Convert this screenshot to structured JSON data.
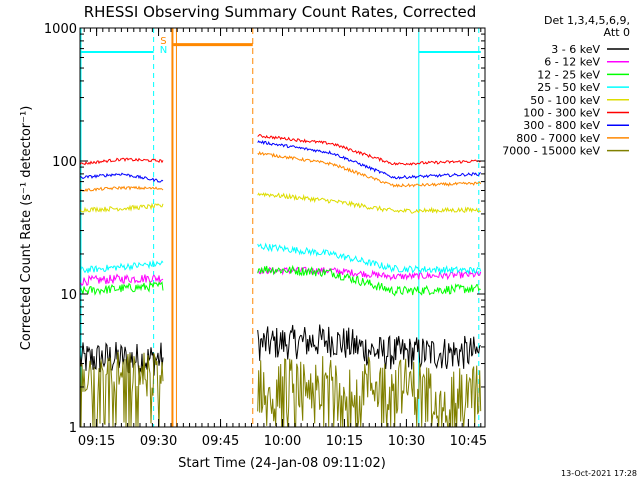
{
  "chart_data": {
    "type": "line",
    "title": "RHESSI Observing Summary Count Rates, Corrected",
    "xlabel": "Start Time (24-Jan-08 09:11:02)",
    "ylabel": "Corrected Count Rate (s⁻¹ detector⁻¹)",
    "y_scale": "log",
    "ylim": [
      1,
      1000
    ],
    "yticks": [
      {
        "value": 1,
        "label": "1"
      },
      {
        "value": 10,
        "label": "10"
      },
      {
        "value": 100,
        "label": "100"
      },
      {
        "value": 1000,
        "label": "1000"
      }
    ],
    "xlim_minutes": [
      9.183,
      10.817
    ],
    "xticks": [
      {
        "value": 9.25,
        "label": "09:15"
      },
      {
        "value": 9.5,
        "label": "09:30"
      },
      {
        "value": 9.75,
        "label": "09:45"
      },
      {
        "value": 10.0,
        "label": "10:00"
      },
      {
        "value": 10.25,
        "label": "10:15"
      },
      {
        "value": 10.5,
        "label": "10:30"
      },
      {
        "value": 10.75,
        "label": "10:45"
      }
    ],
    "legend": {
      "placement": "right",
      "header": [
        "Det 1,3,4,5,6,9,",
        "Att 0"
      ]
    },
    "series": [
      {
        "name": "3 - 6 keV",
        "color": "#000000",
        "segments": [
          {
            "x": [
              9.183,
              9.3,
              9.45,
              9.52
            ],
            "y": [
              3.2,
              3.3,
              3.2,
              3.3
            ],
            "noise": 0.3
          },
          {
            "x": [
              9.9,
              10.2,
              10.4,
              10.8
            ],
            "y": [
              4.2,
              4.5,
              3.6,
              3.6
            ],
            "noise": 0.3
          }
        ]
      },
      {
        "name": "6 - 12 keV",
        "color": "#ff00ff",
        "segments": [
          {
            "x": [
              9.183,
              9.35,
              9.52
            ],
            "y": [
              12.5,
              13,
              13.2
            ],
            "noise": 0.08
          },
          {
            "x": [
              9.9,
              10.2,
              10.45,
              10.8
            ],
            "y": [
              15,
              15,
              13.5,
              14
            ],
            "noise": 0.06
          }
        ]
      },
      {
        "name": "12 - 25 keV",
        "color": "#00ff00",
        "segments": [
          {
            "x": [
              9.183,
              9.35,
              9.52
            ],
            "y": [
              10.5,
              11,
              11.5
            ],
            "noise": 0.08
          },
          {
            "x": [
              9.9,
              10.2,
              10.45,
              10.8
            ],
            "y": [
              15.5,
              14.5,
              10.5,
              11
            ],
            "noise": 0.08
          }
        ]
      },
      {
        "name": "25 - 50 keV",
        "color": "#00ffff",
        "segments": [
          {
            "x": [
              9.183,
              9.35,
              9.52
            ],
            "y": [
              15,
              16,
              17
            ],
            "noise": 0.06
          },
          {
            "x": [
              9.9,
              10.2,
              10.45,
              10.8
            ],
            "y": [
              23,
              20,
              15.5,
              15
            ],
            "noise": 0.06
          }
        ]
      },
      {
        "name": "50 - 100 keV",
        "color": "#dddd00",
        "segments": [
          {
            "x": [
              9.183,
              9.35,
              9.52
            ],
            "y": [
              43,
              44,
              46
            ],
            "noise": 0.04
          },
          {
            "x": [
              9.9,
              10.2,
              10.45,
              10.8
            ],
            "y": [
              57,
              50,
              42,
              43
            ],
            "noise": 0.04
          }
        ]
      },
      {
        "name": "100 - 300 keV",
        "color": "#ff0000",
        "segments": [
          {
            "x": [
              9.183,
              9.35,
              9.52
            ],
            "y": [
              95,
              103,
              100
            ],
            "noise": 0.025
          },
          {
            "x": [
              9.9,
              10.2,
              10.45,
              10.8
            ],
            "y": [
              155,
              135,
              95,
              100
            ],
            "noise": 0.025
          }
        ]
      },
      {
        "name": "300 - 800 keV",
        "color": "#0000ff",
        "segments": [
          {
            "x": [
              9.183,
              9.35,
              9.52
            ],
            "y": [
              75,
              80,
              70
            ],
            "noise": 0.025
          },
          {
            "x": [
              9.9,
              10.2,
              10.45,
              10.8
            ],
            "y": [
              140,
              115,
              75,
              80
            ],
            "noise": 0.025
          }
        ]
      },
      {
        "name": "800 - 7000 keV",
        "color": "#ff8800",
        "segments": [
          {
            "x": [
              9.183,
              9.35,
              9.52
            ],
            "y": [
              60,
              63,
              62
            ],
            "noise": 0.025
          },
          {
            "x": [
              9.9,
              10.2,
              10.45,
              10.8
            ],
            "y": [
              115,
              95,
              65,
              68
            ],
            "noise": 0.025
          }
        ]
      },
      {
        "name": "7000 - 15000 keV",
        "color": "#808000",
        "segments": [
          {
            "x": [
              9.183,
              9.52
            ],
            "y": [
              2.5,
              2.5
            ],
            "noise": 0.4,
            "floor": 1.4
          },
          {
            "x": [
              9.9,
              10.3,
              10.8
            ],
            "y": [
              2.0,
              2.2,
              1.8
            ],
            "noise": 0.5,
            "floor": 1.4
          }
        ]
      }
    ],
    "markers": {
      "saa_night_bars": {
        "color": "#00ffff",
        "y": 660,
        "ranges": [
          [
            9.183,
            9.48
          ],
          [
            10.55,
            10.8
          ]
        ]
      },
      "flag_bar": {
        "color": "#ff8800",
        "y": 750,
        "range": [
          9.56,
          9.88
        ],
        "labels": [
          "S",
          "N"
        ]
      }
    }
  },
  "footer": {
    "date": "13-Oct-2021 17:28"
  }
}
